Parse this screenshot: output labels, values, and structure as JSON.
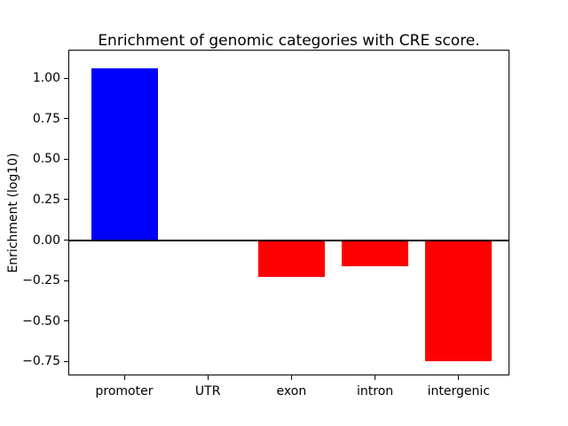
{
  "figure": {
    "background": "#ffffff"
  },
  "chart_data": {
    "type": "bar",
    "title": "Enrichment of genomic categories with CRE score.",
    "xlabel": "",
    "ylabel": "Enrichment (log10)",
    "categories": [
      "promoter",
      "UTR",
      "exon",
      "intron",
      "intergenic"
    ],
    "values": [
      1.06,
      0.0,
      -0.23,
      -0.16,
      -0.75
    ],
    "bar_colors": [
      "#0000ff",
      "#ff0000",
      "#ff0000",
      "#ff0000",
      "#ff0000"
    ],
    "positive_color": "#0000ff",
    "negative_color": "#ff0000",
    "ylim": [
      -0.83,
      1.17
    ],
    "yticks": [
      1.0,
      0.75,
      0.5,
      0.25,
      0.0,
      -0.25,
      -0.5,
      -0.75
    ],
    "ytick_labels": [
      "1.00",
      "0.75",
      "0.50",
      "0.25",
      "0.00",
      "−0.25",
      "−0.50",
      "−0.75"
    ],
    "grid": false,
    "legend": null,
    "zero_line": true,
    "frame_color": "#000000",
    "text_color": "#000000",
    "plot_background": "#ffffff"
  }
}
